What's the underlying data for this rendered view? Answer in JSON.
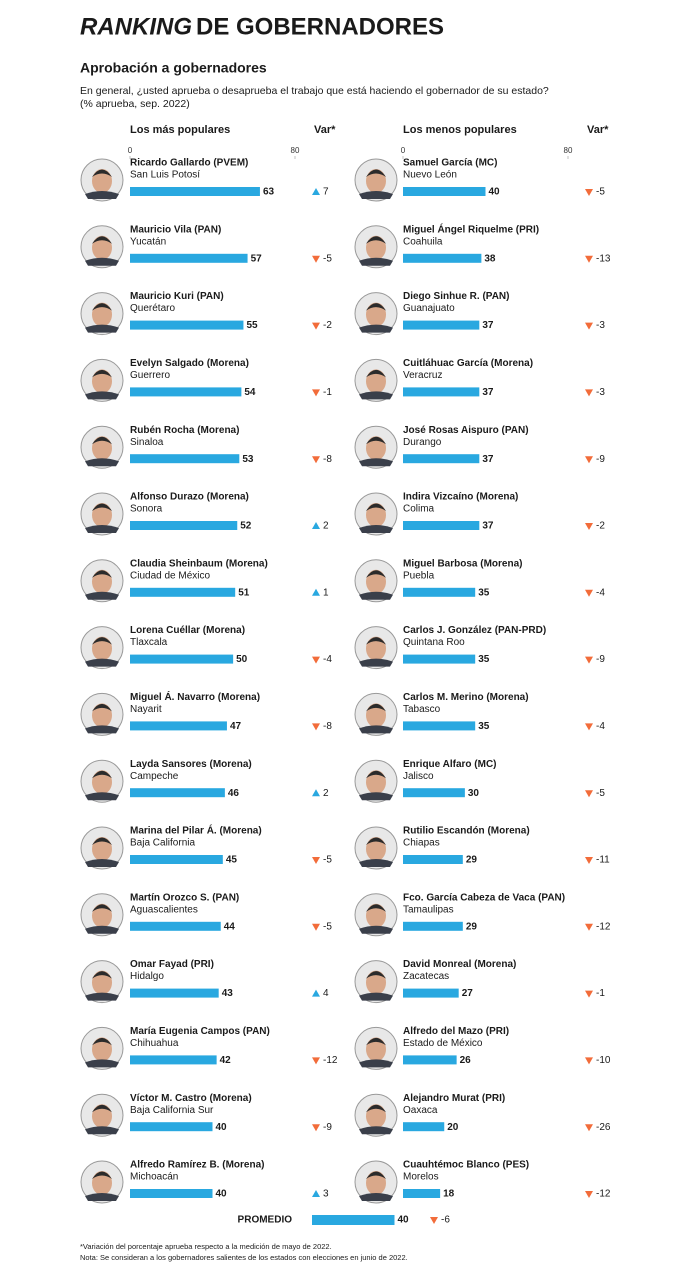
{
  "title": {
    "emphasis": "RANKING",
    "rest": "DE GOBERNADORES"
  },
  "subtitle": "Aprobación a gobernadores",
  "question": "En general, ¿usted aprueba o desaprueba el trabajo que está haciendo el gobernador de su estado?",
  "unit": "(% aprueba, sep. 2022)",
  "chart_data": [
    {
      "type": "hbar",
      "title": "Los más populares",
      "change_label": "Var*",
      "xlim": [
        0,
        80
      ],
      "xticks": [
        0,
        80
      ],
      "color": "#29a8e0",
      "categories": [
        "Ricardo Gallardo (PVEM)",
        "Mauricio Vila (PAN)",
        "Mauricio Kuri (PAN)",
        "Evelyn Salgado (Morena)",
        "Rubén Rocha (Morena)",
        "Alfonso Durazo (Morena)",
        "Claudia Sheinbaum (Morena)",
        "Lorena Cuéllar (Morena)",
        "Miguel Á. Navarro (Morena)",
        "Layda Sansores (Morena)",
        "Marina del Pilar Á. (Morena)",
        "Martín Orozco S. (PAN)",
        "Omar Fayad (PRI)",
        "María Eugenia Campos (PAN)",
        "Víctor M. Castro (Morena)",
        "Alfredo Ramírez B. (Morena)"
      ],
      "states": [
        "San Luis Potosí",
        "Yucatán",
        "Querétaro",
        "Guerrero",
        "Sinaloa",
        "Sonora",
        "Ciudad de México",
        "Tlaxcala",
        "Nayarit",
        "Campeche",
        "Baja California",
        "Aguascalientes",
        "Hidalgo",
        "Chihuahua",
        "Baja California Sur",
        "Michoacán"
      ],
      "values": [
        63,
        57,
        55,
        54,
        53,
        52,
        51,
        50,
        47,
        46,
        45,
        44,
        43,
        42,
        40,
        40
      ],
      "changes": [
        7,
        -5,
        -2,
        -1,
        -8,
        2,
        1,
        -4,
        -8,
        2,
        -5,
        -5,
        4,
        -12,
        -9,
        3
      ]
    },
    {
      "type": "hbar",
      "title": "Los menos populares",
      "change_label": "Var*",
      "xlim": [
        0,
        80
      ],
      "xticks": [
        0,
        80
      ],
      "color": "#29a8e0",
      "categories": [
        "Samuel García (MC)",
        "Miguel Ángel Riquelme (PRI)",
        "Diego Sinhue R. (PAN)",
        "Cuitláhuac García (Morena)",
        "José Rosas Aispuro (PAN)",
        "Indira Vizcaíno (Morena)",
        "Miguel Barbosa (Morena)",
        "Carlos J. González (PAN-PRD)",
        "Carlos M. Merino (Morena)",
        "Enrique Alfaro (MC)",
        "Rutilio Escandón (Morena)",
        "Fco. García Cabeza de Vaca (PAN)",
        "David Monreal (Morena)",
        "Alfredo del Mazo (PRI)",
        "Alejandro Murat (PRI)",
        "Cuauhtémoc Blanco (PES)"
      ],
      "states": [
        "Nuevo León",
        "Coahuila",
        "Guanajuato",
        "Veracruz",
        "Durango",
        "Colima",
        "Puebla",
        "Quintana Roo",
        "Tabasco",
        "Jalisco",
        "Chiapas",
        "Tamaulipas",
        "Zacatecas",
        "Estado de México",
        "Oaxaca",
        "Morelos"
      ],
      "values": [
        40,
        38,
        37,
        37,
        37,
        37,
        35,
        35,
        35,
        30,
        29,
        29,
        27,
        26,
        20,
        18
      ],
      "changes": [
        -5,
        -13,
        -3,
        -3,
        -9,
        -2,
        -4,
        -9,
        -4,
        -5,
        -11,
        -12,
        -1,
        -10,
        -26,
        -12
      ]
    }
  ],
  "average": {
    "label": "PROMEDIO",
    "value": 40,
    "change": -6
  },
  "up_color": "#29a8e0",
  "down_color": "#f26c3a",
  "notes": [
    "*Variación del porcentaje aprueba respecto a la medición de mayo de 2022.",
    "Nota: Se consideran a los gobernadores salientes de los estados con elecciones en junio de 2022."
  ]
}
